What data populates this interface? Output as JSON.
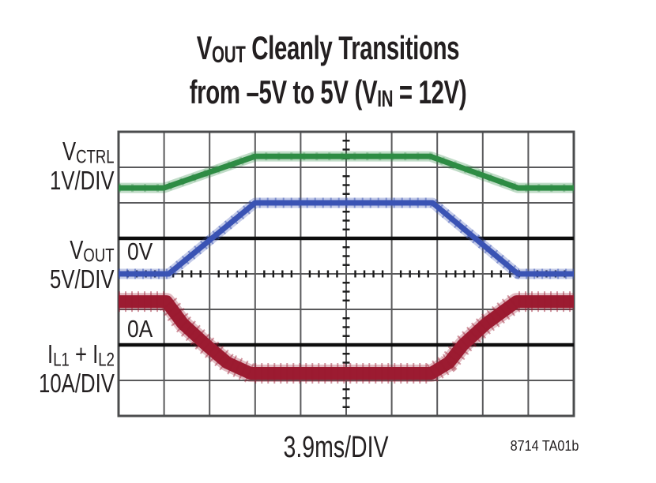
{
  "title": {
    "line1_segments": [
      {
        "t": "V"
      },
      {
        "s": "OUT"
      },
      {
        "t": " Cleanly Transitions"
      }
    ],
    "line2_segments": [
      {
        "t": "from –5V to 5V (V"
      },
      {
        "s": "IN"
      },
      {
        "t": " = 12V)"
      }
    ]
  },
  "channels": [
    {
      "id": "vctrl",
      "name_segments": [
        {
          "t": "V"
        },
        {
          "s": "CTRL"
        }
      ],
      "scale": "1V/DIV",
      "color": "#2e8c44"
    },
    {
      "id": "vout",
      "name_segments": [
        {
          "t": "V"
        },
        {
          "s": "OUT"
        }
      ],
      "scale": "5V/DIV",
      "color": "#3a53b4",
      "zero_label": "0V"
    },
    {
      "id": "il",
      "name_segments": [
        {
          "t": "I"
        },
        {
          "s": "L1"
        },
        {
          "t": " + I"
        },
        {
          "s": "L2"
        }
      ],
      "scale": "10A/DIV",
      "color": "#9c1b31",
      "zero_label": "0A"
    }
  ],
  "footer": {
    "timebase": "3.9ms/DIV",
    "note": "8714 TA01b"
  },
  "colors": {
    "background": "#ffffff",
    "text": "#231f20",
    "grid_line": "#59595b",
    "grid_border": "#4b4c4e",
    "tick": "#1b1b1b",
    "ref_line": "#0d0d0d",
    "trace_green": "#2e8c44",
    "trace_blue": "#3a53b4",
    "trace_red": "#9c1b31"
  },
  "chart_data": {
    "type": "line",
    "title": "VOUT Cleanly Transitions from –5V to 5V (VIN = 12V)",
    "x_unit": "ms",
    "time_per_div_ms": 3.9,
    "divisions": {
      "cols": 10,
      "rows": 8
    },
    "grid": "on",
    "minor_ticks": {
      "vertical_per_div": 4,
      "horizontal_per_div": 5,
      "center_col": 5,
      "center_row": 4
    },
    "series": [
      {
        "name": "VCTRL",
        "units": "V",
        "per_div": 1,
        "zero_at_div_from_top": 3,
        "color": "#2e8c44",
        "points": [
          [
            0,
            1.42
          ],
          [
            3.9,
            1.42
          ],
          [
            11.7,
            2.31
          ],
          [
            26.7,
            2.31
          ],
          [
            34.2,
            1.42
          ],
          [
            39,
            1.42
          ]
        ]
      },
      {
        "name": "VOUT",
        "units": "V",
        "per_div": 5,
        "zero_at_div_from_top": 3,
        "color": "#3a53b4",
        "points": [
          [
            0,
            -5
          ],
          [
            4.3,
            -5
          ],
          [
            11.7,
            5
          ],
          [
            26.9,
            5
          ],
          [
            34.2,
            -5
          ],
          [
            39,
            -5
          ]
        ]
      },
      {
        "name": "IL1+IL2",
        "units": "A",
        "per_div": 10,
        "zero_at_div_from_top": 6,
        "color": "#9c1b31",
        "points": [
          [
            0,
            12.2
          ],
          [
            4.1,
            12.2
          ],
          [
            5.5,
            6
          ],
          [
            7.5,
            0
          ],
          [
            9.3,
            -5
          ],
          [
            11.3,
            -8
          ],
          [
            26.8,
            -8
          ],
          [
            28.3,
            -5
          ],
          [
            29.5,
            0
          ],
          [
            31.5,
            6
          ],
          [
            34.1,
            12.2
          ],
          [
            39,
            12.2
          ]
        ]
      }
    ],
    "reference_lines": [
      {
        "label": "0V",
        "series": "VOUT",
        "value": 0
      },
      {
        "label": "0A",
        "series": "IL1+IL2",
        "value": 0
      }
    ]
  }
}
